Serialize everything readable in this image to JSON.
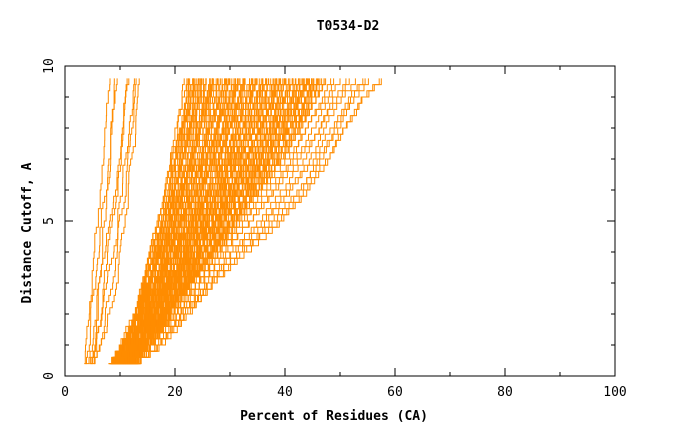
{
  "chart_data": {
    "type": "line",
    "title": "T0534-D2",
    "xlabel": "Percent of Residues (CA)",
    "ylabel": "Distance Cutoff, A",
    "xlim": [
      0,
      100
    ],
    "ylim": [
      0,
      10
    ],
    "x_ticks": [
      "0",
      "20",
      "40",
      "60",
      "80",
      "100"
    ],
    "y_ticks": [
      "0",
      "5",
      "10"
    ],
    "grid": false,
    "legend": "none",
    "line_color": "#ff8c00",
    "series_count": 150,
    "y_start": 0.4,
    "y_end": 9.6,
    "envelope": {
      "y": [
        0.4,
        1.0,
        2.0,
        3.0,
        4.0,
        5.0,
        6.0,
        7.0,
        8.0,
        9.0,
        9.6
      ],
      "leftmost_x": [
        3.5,
        4.0,
        4.5,
        5.0,
        5.5,
        6.0,
        6.5,
        7.0,
        7.5,
        8.0,
        8.2
      ],
      "bulk_low_x": [
        8.0,
        10.0,
        12.5,
        14.0,
        15.5,
        17.0,
        18.5,
        19.5,
        20.5,
        21.5,
        22.0
      ],
      "bulk_high_x": [
        12.0,
        15.0,
        19.0,
        23.0,
        27.0,
        31.0,
        35.0,
        39.0,
        42.5,
        45.5,
        47.0
      ],
      "rightmost_x": [
        12.0,
        17.0,
        22.0,
        27.0,
        33.0,
        40.0,
        45.0,
        49.0,
        52.0,
        55.0,
        58.5
      ]
    }
  }
}
